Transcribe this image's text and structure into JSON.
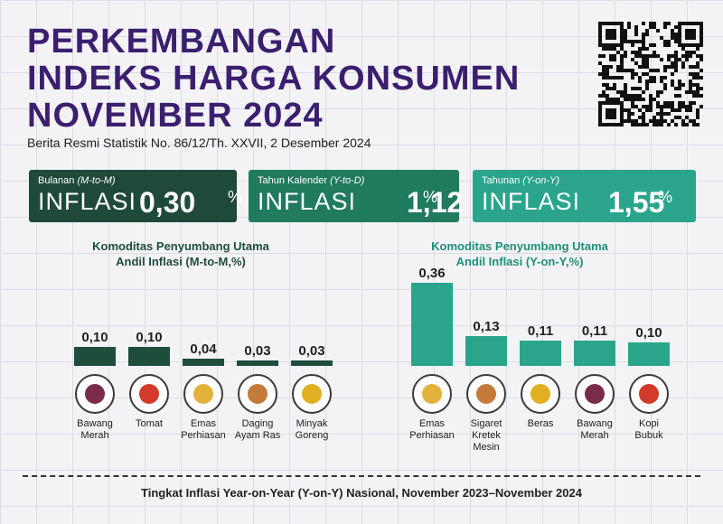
{
  "header": {
    "title": [
      "PERKEMBANGAN",
      "INDEKS HARGA KONSUMEN",
      "NOVEMBER 2024"
    ],
    "subtitle": "Berita Resmi Statistik No. 86/12/Th. XXVII, 2 Desember 2024"
  },
  "cards": [
    {
      "label": "Bulanan",
      "period": "(M-to-M)",
      "word": "INFLASI",
      "value": "0,30",
      "unit": "%"
    },
    {
      "label": "Tahun Kalender",
      "period": "(Y-to-D)",
      "word": "INFLASI",
      "value": "1,12",
      "unit": "%"
    },
    {
      "label": "Tahunan",
      "period": "(Y-on-Y)",
      "word": "INFLASI",
      "value": "1,55",
      "unit": "%"
    }
  ],
  "chart_data": [
    {
      "type": "bar",
      "title": "Komoditas Penyumbang Utama",
      "subtitle": "Andil Inflasi (M-to-M,%)",
      "categories": [
        "Bawang\nMerah",
        "Tomat",
        "Emas\nPerhiasan",
        "Daging\nAyam Ras",
        "Minyak\nGoreng"
      ],
      "values": [
        0.1,
        0.1,
        0.04,
        0.03,
        0.03
      ],
      "value_labels": [
        "0,10",
        "0,10",
        "0,04",
        "0,03",
        "0,03"
      ],
      "color": "#1e4d3c",
      "ylim": [
        0,
        0.5
      ]
    },
    {
      "type": "bar",
      "title": "Komoditas Penyumbang Utama",
      "subtitle": "Andil Inflasi (Y-on-Y,%)",
      "categories": [
        "Emas\nPerhiasan",
        "Sigaret\nKretek\nMesin",
        "Beras",
        "Bawang\nMerah",
        "Kopi\nBubuk"
      ],
      "values": [
        0.36,
        0.13,
        0.11,
        0.11,
        0.1
      ],
      "value_labels": [
        "0,36",
        "0,13",
        "0,11",
        "0,11",
        "0,10"
      ],
      "color": "#2aa58b",
      "ylim": [
        0,
        0.41
      ]
    }
  ],
  "footer": "Tingkat Inflasi Year-on-Year (Y-on-Y) Nasional, November 2023–November 2024"
}
